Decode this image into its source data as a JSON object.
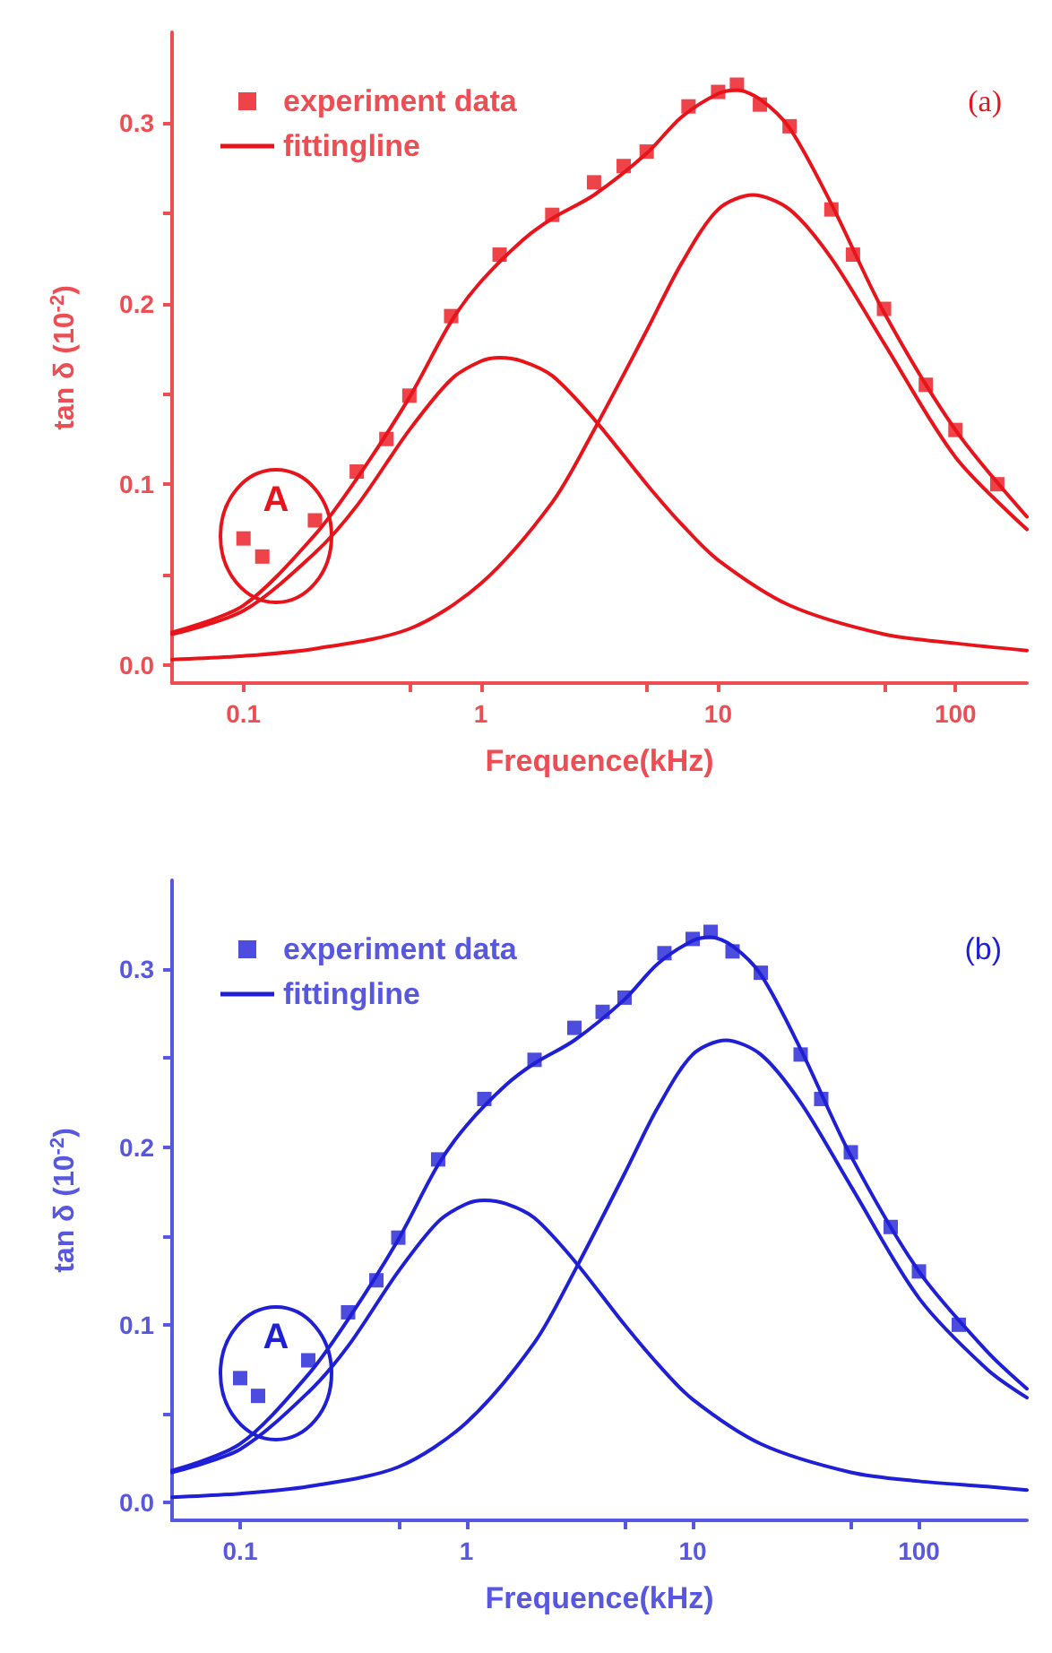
{
  "chart_data": [
    {
      "type": "scatter",
      "xlabel": "Frequence(kHz)",
      "ylabel": "tan δ (10$^{-2}$)",
      "log": "x",
      "xlim": [
        0.05,
        200
      ],
      "ylim": [
        -0.01,
        0.35
      ],
      "xticks": [
        {
          "value": 0.1,
          "label": "0.1"
        },
        {
          "value": 0.5,
          "label": null
        },
        {
          "value": 1,
          "label": "1"
        },
        {
          "value": 5,
          "label": null
        },
        {
          "value": 10,
          "label": "10"
        },
        {
          "value": 50,
          "label": null
        },
        {
          "value": 100,
          "label": "100"
        }
      ],
      "yticks": [
        {
          "value": 0,
          "label": "0.0"
        },
        {
          "value": 0.05,
          "label": null
        },
        {
          "value": 0.1,
          "label": "0.1"
        },
        {
          "value": 0.15,
          "label": null
        },
        {
          "value": 0.2,
          "label": "0.2"
        },
        {
          "value": 0.25,
          "label": null
        },
        {
          "value": 0.3,
          "label": "0.3"
        }
      ],
      "grid": false,
      "legend": "top left",
      "annotations": [
        "A",
        "(a)"
      ],
      "series": [
        {
          "name": "experiment data",
          "marker": "square",
          "color": "#e8141b",
          "x": [
            0.1,
            0.12,
            0.2,
            0.3,
            0.4,
            0.5,
            0.75,
            1.2,
            2,
            3,
            4,
            5,
            7.5,
            10,
            12,
            15,
            20,
            30,
            37,
            50,
            75,
            100,
            150
          ],
          "values": [
            0.07,
            0.06,
            0.08,
            0.107,
            0.125,
            0.149,
            0.193,
            0.227,
            0.249,
            0.267,
            0.276,
            0.284,
            0.309,
            0.317,
            0.321,
            0.31,
            0.298,
            0.252,
            0.227,
            0.197,
            0.155,
            0.13,
            0.1
          ]
        },
        {
          "name": "fittingline",
          "type": "line",
          "marker": "none",
          "line_style": "solid",
          "color": "#e8141b",
          "x": [
            0.05,
            0.1,
            0.2,
            0.3,
            0.5,
            0.75,
            1,
            1.5,
            2,
            3,
            5,
            7,
            10,
            12,
            15,
            20,
            30,
            50,
            100,
            200
          ],
          "values": [
            0.018,
            0.033,
            0.072,
            0.103,
            0.148,
            0.19,
            0.212,
            0.235,
            0.247,
            0.26,
            0.283,
            0.303,
            0.316,
            0.318,
            0.313,
            0.297,
            0.255,
            0.195,
            0.13,
            0.082
          ]
        },
        {
          "type": "line",
          "marker": "none",
          "line_style": "solid",
          "color": "#e8141b",
          "x": [
            0.05,
            0.1,
            0.2,
            0.3,
            0.5,
            0.75,
            1,
            1.2,
            1.5,
            2,
            3,
            5,
            7,
            10,
            20,
            50,
            100,
            200
          ],
          "values": [
            0.017,
            0.03,
            0.062,
            0.088,
            0.13,
            0.158,
            0.168,
            0.17,
            0.168,
            0.16,
            0.136,
            0.1,
            0.078,
            0.058,
            0.033,
            0.017,
            0.012,
            0.008
          ]
        },
        {
          "type": "line",
          "marker": "none",
          "line_style": "solid",
          "color": "#e8141b",
          "x": [
            0.05,
            0.1,
            0.2,
            0.5,
            1,
            2,
            3,
            5,
            7,
            10,
            14,
            20,
            30,
            50,
            100,
            200
          ],
          "values": [
            0.003,
            0.005,
            0.009,
            0.02,
            0.045,
            0.09,
            0.13,
            0.185,
            0.222,
            0.252,
            0.26,
            0.252,
            0.225,
            0.178,
            0.115,
            0.075
          ]
        }
      ]
    },
    {
      "type": "scatter",
      "xlabel": "Frequence(kHz)",
      "ylabel": "tan δ (10$^{-2}$)",
      "log": "x",
      "xlim": [
        0.05,
        300
      ],
      "ylim": [
        -0.01,
        0.35
      ],
      "xticks": [
        {
          "value": 0.1,
          "label": "0.1"
        },
        {
          "value": 0.5,
          "label": null
        },
        {
          "value": 1,
          "label": "1"
        },
        {
          "value": 5,
          "label": null
        },
        {
          "value": 10,
          "label": "10"
        },
        {
          "value": 50,
          "label": null
        },
        {
          "value": 100,
          "label": "100"
        }
      ],
      "yticks": [
        {
          "value": 0,
          "label": "0.0"
        },
        {
          "value": 0.05,
          "label": null
        },
        {
          "value": 0.1,
          "label": "0.1"
        },
        {
          "value": 0.15,
          "label": null
        },
        {
          "value": 0.2,
          "label": "0.2"
        },
        {
          "value": 0.25,
          "label": null
        },
        {
          "value": 0.3,
          "label": "0.3"
        }
      ],
      "grid": false,
      "legend": "top left",
      "annotations": [
        "A",
        "(b)"
      ],
      "series": [
        {
          "name": "experiment data",
          "marker": "square",
          "color": "#1f1fd6",
          "x": [
            0.1,
            0.12,
            0.2,
            0.3,
            0.4,
            0.5,
            0.75,
            1.2,
            2,
            3,
            4,
            5,
            7.5,
            10,
            12,
            15,
            20,
            30,
            37,
            50,
            75,
            100,
            150
          ],
          "values": [
            0.07,
            0.06,
            0.08,
            0.107,
            0.125,
            0.149,
            0.193,
            0.227,
            0.249,
            0.267,
            0.276,
            0.284,
            0.309,
            0.317,
            0.321,
            0.31,
            0.298,
            0.252,
            0.227,
            0.197,
            0.155,
            0.13,
            0.1
          ]
        },
        {
          "name": "fittingline",
          "type": "line",
          "marker": "none",
          "line_style": "solid",
          "color": "#1f1fd6",
          "x": [
            0.05,
            0.1,
            0.2,
            0.3,
            0.5,
            0.75,
            1,
            1.5,
            2,
            3,
            5,
            7,
            10,
            12,
            15,
            20,
            30,
            50,
            100,
            200,
            300
          ],
          "values": [
            0.018,
            0.033,
            0.072,
            0.103,
            0.148,
            0.19,
            0.212,
            0.235,
            0.247,
            0.26,
            0.283,
            0.303,
            0.316,
            0.318,
            0.313,
            0.297,
            0.255,
            0.195,
            0.13,
            0.085,
            0.064
          ]
        },
        {
          "type": "line",
          "marker": "none",
          "line_style": "solid",
          "color": "#1f1fd6",
          "x": [
            0.05,
            0.1,
            0.2,
            0.3,
            0.5,
            0.75,
            1,
            1.2,
            1.5,
            2,
            3,
            5,
            7,
            10,
            20,
            50,
            100,
            200,
            300
          ],
          "values": [
            0.017,
            0.03,
            0.062,
            0.088,
            0.13,
            0.158,
            0.168,
            0.17,
            0.168,
            0.16,
            0.136,
            0.1,
            0.078,
            0.058,
            0.033,
            0.017,
            0.012,
            0.009,
            0.007
          ]
        },
        {
          "type": "line",
          "marker": "none",
          "line_style": "solid",
          "color": "#1f1fd6",
          "x": [
            0.05,
            0.1,
            0.2,
            0.5,
            1,
            2,
            3,
            5,
            7,
            10,
            14,
            20,
            30,
            50,
            100,
            200,
            300
          ],
          "values": [
            0.003,
            0.005,
            0.009,
            0.02,
            0.045,
            0.09,
            0.13,
            0.185,
            0.222,
            0.252,
            0.26,
            0.252,
            0.225,
            0.178,
            0.115,
            0.075,
            0.059
          ]
        }
      ]
    }
  ]
}
